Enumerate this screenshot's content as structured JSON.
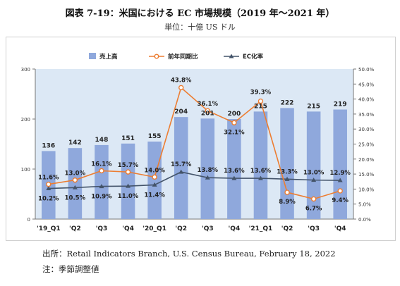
{
  "title": "図表 7-19：米国における EC 市場規模（2019 年〜2021 年）",
  "subtitle": "単位：十億 US ドル",
  "source": "出所：Retail Indicators Branch, U.S. Census Bureau, February 18, 2022",
  "note": "注：季節調整値",
  "colors": {
    "bar": "#8FA8DC",
    "yoy": "#ED7D31",
    "ec": "#44546A",
    "plot_bg": "#DCE8F5"
  },
  "chart_data": {
    "type": "bar",
    "categories": [
      "'19_Q1",
      "'Q2",
      "'Q3",
      "'Q4",
      "'20_Q1",
      "'Q2",
      "'Q3",
      "'Q4",
      "'21_Q1",
      "'Q2",
      "'Q3",
      "'Q4"
    ],
    "series": [
      {
        "name": "売上高",
        "type": "bar",
        "axis": "left",
        "values": [
          136,
          142,
          148,
          151,
          155,
          204,
          201,
          200,
          215,
          222,
          215,
          219
        ],
        "labels": [
          "136",
          "142",
          "148",
          "151",
          "155",
          "204",
          "201",
          "200",
          "215",
          "222",
          "215",
          "219"
        ]
      },
      {
        "name": "前年同期比",
        "type": "line",
        "axis": "right",
        "values": [
          11.6,
          13.0,
          16.1,
          15.7,
          14.0,
          43.8,
          36.1,
          32.1,
          39.3,
          8.9,
          6.7,
          9.4
        ],
        "labels": [
          "11.6%",
          "13.0%",
          "16.1%",
          "15.7%",
          "14.0%",
          "43.8%",
          "36.1%",
          "32.1%",
          "39.3%",
          "8.9%",
          "6.7%",
          "9.4%"
        ]
      },
      {
        "name": "EC化率",
        "type": "line",
        "axis": "right",
        "values": [
          10.2,
          10.5,
          10.9,
          11.0,
          11.4,
          15.7,
          13.8,
          13.6,
          13.6,
          13.3,
          13.0,
          12.9
        ],
        "labels": [
          "10.2%",
          "10.5%",
          "10.9%",
          "11.0%",
          "11.4%",
          "15.7%",
          "13.8%",
          "13.6%",
          "13.6%",
          "13.3%",
          "13.0%",
          "12.9%"
        ]
      }
    ],
    "ylim_left": [
      0,
      300
    ],
    "yticks_left": [
      "0",
      "100",
      "200",
      "300"
    ],
    "ylim_right": [
      0,
      50
    ],
    "yticks_right": [
      "0.0%",
      "5.0%",
      "10.0%",
      "15.0%",
      "20.0%",
      "25.0%",
      "30.0%",
      "35.0%",
      "40.0%",
      "45.0%",
      "50.0%"
    ],
    "legend_position": "top"
  }
}
